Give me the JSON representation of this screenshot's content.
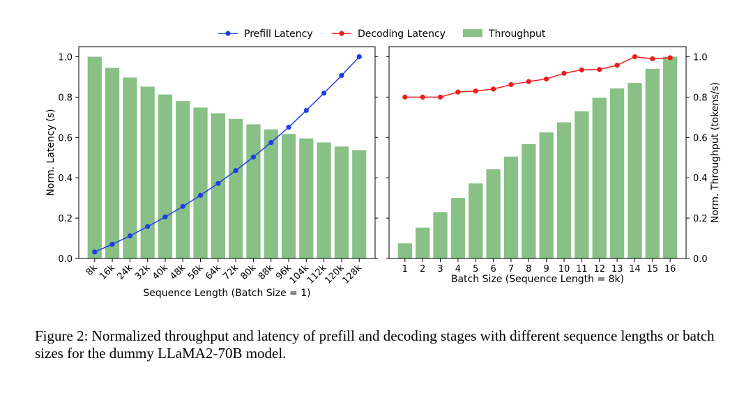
{
  "legend": [
    {
      "label": "Prefill Latency",
      "color": "#1f3fe6",
      "kind": "line"
    },
    {
      "label": "Decoding Latency",
      "color": "#f01a1a",
      "kind": "line"
    },
    {
      "label": "Throughput",
      "color": "#88c086",
      "kind": "bar"
    }
  ],
  "caption": "Figure 2: Normalized throughput and latency of prefill and decoding stages with different sequence lengths or batch sizes for the dummy LLaMA2-70B model.",
  "chart_data": [
    {
      "type": "bar+line",
      "categories": [
        "8k",
        "16k",
        "24k",
        "32k",
        "40k",
        "48k",
        "56k",
        "64k",
        "72k",
        "80k",
        "88k",
        "96k",
        "104k",
        "112k",
        "120k",
        "128k"
      ],
      "series": [
        {
          "name": "Throughput",
          "type": "bar",
          "color": "#88c086",
          "values": [
            1.0,
            0.945,
            0.897,
            0.852,
            0.813,
            0.78,
            0.748,
            0.72,
            0.692,
            0.665,
            0.64,
            0.617,
            0.595,
            0.575,
            0.555,
            0.537
          ]
        },
        {
          "name": "Prefill Latency",
          "type": "line",
          "color": "#1f3fe6",
          "values": [
            0.032,
            0.07,
            0.112,
            0.158,
            0.206,
            0.258,
            0.313,
            0.372,
            0.436,
            0.503,
            0.575,
            0.651,
            0.734,
            0.82,
            0.907,
            1.0
          ]
        }
      ],
      "xlabel": "Sequence Length (Batch Size = 1)",
      "ylabel": "Norm. Latency (s)",
      "ylim": [
        0,
        1.0
      ],
      "yticks": [
        "0.0",
        "0.2",
        "0.4",
        "0.6",
        "0.8",
        "1.0"
      ]
    },
    {
      "type": "bar+line",
      "categories": [
        "1",
        "2",
        "3",
        "4",
        "5",
        "6",
        "7",
        "8",
        "9",
        "10",
        "11",
        "12",
        "13",
        "14",
        "15",
        "16"
      ],
      "series": [
        {
          "name": "Throughput",
          "type": "bar",
          "color": "#88c086",
          "values": [
            0.075,
            0.153,
            0.23,
            0.3,
            0.372,
            0.442,
            0.505,
            0.567,
            0.625,
            0.675,
            0.73,
            0.797,
            0.843,
            0.87,
            0.94,
            1.0
          ]
        },
        {
          "name": "Decoding Latency",
          "type": "line",
          "color": "#f01a1a",
          "values": [
            0.8,
            0.8,
            0.8,
            0.825,
            0.83,
            0.84,
            0.862,
            0.877,
            0.89,
            0.918,
            0.935,
            0.937,
            0.958,
            1.0,
            0.99,
            0.995
          ]
        }
      ],
      "xlabel": "Batch Size (Sequence Length = 8k)",
      "ylabel": "Norm. Throughput (tokens/s)",
      "ylim": [
        0,
        1.0
      ],
      "yticks": [
        "0.0",
        "0.2",
        "0.4",
        "0.6",
        "0.8",
        "1.0"
      ]
    }
  ]
}
